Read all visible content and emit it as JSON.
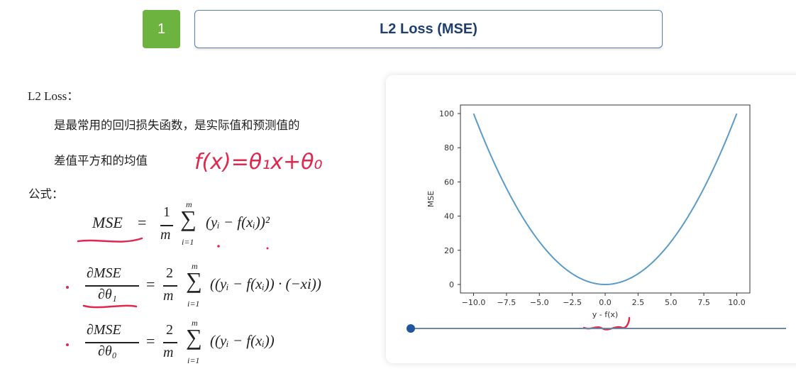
{
  "header": {
    "step_number": "1",
    "title": "L2 Loss (MSE)"
  },
  "content": {
    "section_label": "L2 Loss：",
    "description_line1": "是最常用的回归损失函数，是实际值和预测值的",
    "description_line2": "差值平方和的均值",
    "handwritten_note": "f(x)=θ₁x+θ₀",
    "formula_label": "公式："
  },
  "formulas": {
    "mse_lhs": "MSE",
    "mse_term": "(yᵢ − f(xᵢ))²",
    "d1_num": "∂MSE",
    "d1_den": "∂θ₁",
    "d1_term": "((yᵢ − f(xᵢ)) · (−xi))",
    "d0_num": "∂MSE",
    "d0_den": "∂θ₀",
    "d0_term": "((yᵢ − f(xᵢ))",
    "frac1_num": "1",
    "frac2_num": "2",
    "frac_den": "m",
    "sum_top": "m",
    "sum_bottom": "i=1",
    "sigma": "∑",
    "eq": "="
  },
  "chart_data": {
    "type": "line",
    "xlabel": "y - f(x)",
    "ylabel": "MSE",
    "xlim": [
      -11,
      11
    ],
    "ylim": [
      -5,
      105
    ],
    "x_ticks": [
      -10,
      -7.5,
      -5,
      -2.5,
      0,
      2.5,
      5,
      7.5,
      10
    ],
    "x_tick_labels": [
      "−10.0",
      "−7.5",
      "−5.0",
      "−2.5",
      "0.0",
      "2.5",
      "5.0",
      "7.5",
      "10.0"
    ],
    "y_ticks": [
      0,
      20,
      40,
      60,
      80,
      100
    ],
    "y_tick_labels": [
      "0",
      "20",
      "40",
      "60",
      "80",
      "100"
    ],
    "series": [
      {
        "function": "x^2",
        "x_range": [
          -10,
          10
        ]
      }
    ],
    "line_color": "#5b9bc8",
    "grid": false
  },
  "slider": {
    "value": 0
  },
  "colors": {
    "badge": "#6cb33f",
    "title_text": "#1f3f6e",
    "annotation": "#e0284f"
  }
}
